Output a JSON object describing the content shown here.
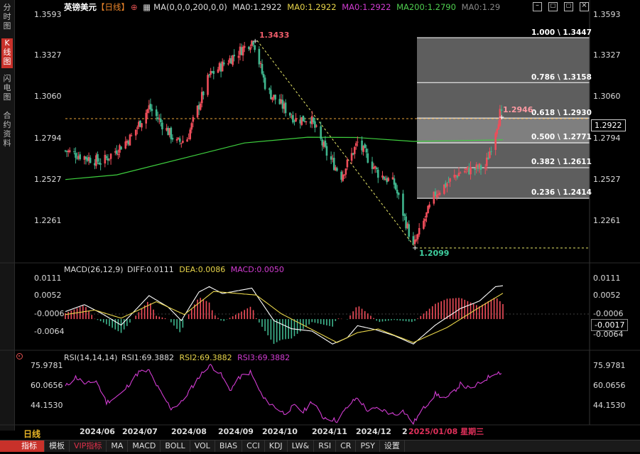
{
  "sidebar": {
    "tabs": [
      {
        "label": "分时图",
        "active": false
      },
      {
        "label": "K线图",
        "active": true
      },
      {
        "label": "闪电图",
        "active": false
      },
      {
        "label": "合约资料",
        "active": false
      }
    ]
  },
  "header": {
    "symbol": "英镑美元",
    "period_tag": "【日线】",
    "settings_icon": "plus-circle-icon",
    "ma_icon": "grid-icon",
    "ma_settings": "MA(0,0,0,200,0,0)",
    "ma_values": [
      {
        "label": "MA0:1.2922",
        "color": "#dddddd"
      },
      {
        "label": "MA0:1.2922",
        "color": "#e8d54a"
      },
      {
        "label": "MA0:1.2922",
        "color": "#d23cd2"
      },
      {
        "label": "MA200:1.2790",
        "color": "#4fcf4f"
      },
      {
        "label": "MA0:1.29",
        "color": "#888888"
      }
    ]
  },
  "window_buttons": [
    "minimize-icon",
    "restore-icon",
    "maximize-icon",
    "close-icon"
  ],
  "price_axis": {
    "left": [
      "1.3593",
      "1.3327",
      "1.3060",
      "1.2794",
      "1.2527",
      "1.2261"
    ],
    "right": [
      "1.3593",
      "1.3327",
      "1.3060",
      "1.2794",
      "1.2527",
      "1.2261"
    ],
    "current_price": "1.2922"
  },
  "annotations": {
    "high_label": "1.3433",
    "low_label": "1.2099",
    "last_high_label": "1.2946"
  },
  "fibonacci": [
    {
      "label": "1.000 \\ 1.3447",
      "level": 1.3447
    },
    {
      "label": "0.786 \\ 1.3158",
      "level": 1.3158
    },
    {
      "label": "0.618 \\ 1.2930",
      "level": 1.293
    },
    {
      "label": "0.500 \\ 1.2771",
      "level": 1.2771
    },
    {
      "label": "0.382 \\ 1.2611",
      "level": 1.2611
    },
    {
      "label": "0.236 \\ 1.2414",
      "level": 1.2414
    }
  ],
  "macd": {
    "settings": "MACD(26,12,9)",
    "diff_label": "DIFF:0.0111",
    "dea_label": "DEA:0.0086",
    "macd_label": "MACD:0.0050",
    "axis_left": [
      "0.0111",
      "0.0052",
      "-0.0006",
      "-0.0064"
    ],
    "axis_right": [
      "0.0111",
      "0.0052",
      "-0.0006",
      "-0.0064"
    ],
    "current": "-0.0017"
  },
  "rsi": {
    "settings": "RSI(14,14,14)",
    "rsi1_label": "RSI1:69.3882",
    "rsi2_label": "RSI2:69.3882",
    "rsi3_label": "RSI3:69.3882",
    "axis_left": [
      "75.9781",
      "60.0656",
      "44.1530"
    ],
    "axis_right": [
      "75.9781",
      "60.0656",
      "44.1530"
    ]
  },
  "date_axis": {
    "period": "日线",
    "labels": [
      "2024/06",
      "2024/07",
      "2024/08",
      "2024/09",
      "2024/10",
      "2024/11",
      "2024/12",
      "2"
    ],
    "cursor_date": "2025/01/08",
    "cursor_weekday": "星期三"
  },
  "bottom_tabs": [
    {
      "label": "指标",
      "active": true
    },
    {
      "label": "模板",
      "active": false
    },
    {
      "label": "VIP指标",
      "active": false,
      "vip": true
    },
    {
      "label": "MA",
      "active": false
    },
    {
      "label": "MACD",
      "active": false
    },
    {
      "label": "BOLL",
      "active": false
    },
    {
      "label": "VOL",
      "active": false
    },
    {
      "label": "BIAS",
      "active": false
    },
    {
      "label": "CCI",
      "active": false
    },
    {
      "label": "KDJ",
      "active": false
    },
    {
      "label": "LW&",
      "active": false
    },
    {
      "label": "RSI",
      "active": false
    },
    {
      "label": "CR",
      "active": false
    },
    {
      "label": "PSY",
      "active": false
    },
    {
      "label": "设置",
      "active": false
    }
  ],
  "colors": {
    "up": "#ef4d5a",
    "down": "#3fb68e",
    "ma200": "#3ecf3e",
    "diff": "#ffffff",
    "dea": "#e8d54a",
    "rsi": "#d23cd2",
    "accent": "#c8312a"
  },
  "chart_data": {
    "type": "candlestick",
    "price_range": [
      1.2095,
      1.3593
    ],
    "anchors": [
      {
        "date": "2024/05/21",
        "price": 1.272
      },
      {
        "date": "2024/06/15",
        "price": 1.2645
      },
      {
        "date": "2024/07/05",
        "price": 1.281
      },
      {
        "date": "2024/07/17",
        "price": 1.3
      },
      {
        "date": "2024/08/05",
        "price": 1.277
      },
      {
        "date": "2024/08/12",
        "price": 1.28
      },
      {
        "date": "2024/08/27",
        "price": 1.32
      },
      {
        "date": "2024/09/26",
        "price": 1.3433
      },
      {
        "date": "2024/10/05",
        "price": 1.311
      },
      {
        "date": "2024/10/25",
        "price": 1.292
      },
      {
        "date": "2024/11/04",
        "price": 1.293
      },
      {
        "date": "2024/11/15",
        "price": 1.27
      },
      {
        "date": "2024/11/25",
        "price": 1.256
      },
      {
        "date": "2024/12/06",
        "price": 1.2772
      },
      {
        "date": "2024/12/20",
        "price": 1.2575
      },
      {
        "date": "2024/12/31",
        "price": 1.2508
      },
      {
        "date": "2025/01/13",
        "price": 1.2099
      },
      {
        "date": "2025/01/28",
        "price": 1.2445
      },
      {
        "date": "2025/02/14",
        "price": 1.2585
      },
      {
        "date": "2025/03/03",
        "price": 1.2615
      },
      {
        "date": "2025/03/13",
        "price": 1.296
      },
      {
        "date": "2025/03/15",
        "price": 1.2922
      }
    ],
    "ma200": [
      {
        "date": "2024/05/21",
        "price": 1.2535
      },
      {
        "date": "2024/06/25",
        "price": 1.2565
      },
      {
        "date": "2024/08/15",
        "price": 1.2685
      },
      {
        "date": "2024/09/20",
        "price": 1.277
      },
      {
        "date": "2024/11/02",
        "price": 1.2807
      },
      {
        "date": "2024/12/05",
        "price": 1.2805
      },
      {
        "date": "2025/01/13",
        "price": 1.278
      },
      {
        "date": "2025/03/15",
        "price": 1.279
      }
    ],
    "macd_range": [
      -0.0092,
      0.0135
    ],
    "macd_diff": [
      {
        "date": "2024/05/21",
        "value": 0.0025
      },
      {
        "date": "2024/06/03",
        "value": 0.0048
      },
      {
        "date": "2024/06/15",
        "value": 0.0018
      },
      {
        "date": "2024/06/28",
        "value": -0.002
      },
      {
        "date": "2024/07/17",
        "value": 0.0078
      },
      {
        "date": "2024/07/30",
        "value": 0.004
      },
      {
        "date": "2024/08/08",
        "value": -0.0005
      },
      {
        "date": "2024/08/20",
        "value": 0.009
      },
      {
        "date": "2024/08/27",
        "value": 0.0108
      },
      {
        "date": "2024/09/05",
        "value": 0.0085
      },
      {
        "date": "2024/09/25",
        "value": 0.0103
      },
      {
        "date": "2024/10/10",
        "value": -0.0005
      },
      {
        "date": "2024/10/22",
        "value": -0.0032
      },
      {
        "date": "2024/11/05",
        "value": -0.004
      },
      {
        "date": "2024/11/19",
        "value": -0.0083
      },
      {
        "date": "2024/11/29",
        "value": -0.0062
      },
      {
        "date": "2024/12/06",
        "value": -0.0022
      },
      {
        "date": "2024/12/18",
        "value": -0.0035
      },
      {
        "date": "2024/12/31",
        "value": -0.0055
      },
      {
        "date": "2025/01/13",
        "value": -0.0083
      },
      {
        "date": "2025/01/28",
        "value": -0.002
      },
      {
        "date": "2025/02/14",
        "value": 0.0035
      },
      {
        "date": "2025/02/27",
        "value": 0.006
      },
      {
        "date": "2025/03/10",
        "value": 0.0108
      },
      {
        "date": "2025/03/15",
        "value": 0.0111
      }
    ],
    "macd_dea": [
      {
        "date": "2024/05/21",
        "value": 0.0015
      },
      {
        "date": "2024/06/10",
        "value": 0.003
      },
      {
        "date": "2024/06/28",
        "value": 0.0003
      },
      {
        "date": "2024/07/22",
        "value": 0.0058
      },
      {
        "date": "2024/08/10",
        "value": 0.0015
      },
      {
        "date": "2024/08/30",
        "value": 0.0092
      },
      {
        "date": "2024/09/28",
        "value": 0.008
      },
      {
        "date": "2024/10/15",
        "value": 0.0018
      },
      {
        "date": "2024/11/05",
        "value": -0.0035
      },
      {
        "date": "2024/11/22",
        "value": -0.0078
      },
      {
        "date": "2024/12/06",
        "value": -0.0045
      },
      {
        "date": "2024/12/20",
        "value": -0.0033
      },
      {
        "date": "2025/01/13",
        "value": -0.0078
      },
      {
        "date": "2025/02/05",
        "value": -0.0028
      },
      {
        "date": "2025/02/24",
        "value": 0.003
      },
      {
        "date": "2025/03/15",
        "value": 0.0086
      }
    ],
    "rsi_range": [
      27,
      84
    ],
    "rsi_series": [
      {
        "date": "2024/05/21",
        "value": 58
      },
      {
        "date": "2024/05/28",
        "value": 66
      },
      {
        "date": "2024/06/04",
        "value": 60
      },
      {
        "date": "2024/06/11",
        "value": 63
      },
      {
        "date": "2024/06/18",
        "value": 45
      },
      {
        "date": "2024/06/28",
        "value": 52
      },
      {
        "date": "2024/07/10",
        "value": 70
      },
      {
        "date": "2024/07/17",
        "value": 71
      },
      {
        "date": "2024/07/24",
        "value": 55
      },
      {
        "date": "2024/08/01",
        "value": 40
      },
      {
        "date": "2024/08/08",
        "value": 45
      },
      {
        "date": "2024/08/20",
        "value": 66
      },
      {
        "date": "2024/08/27",
        "value": 76
      },
      {
        "date": "2024/09/03",
        "value": 70
      },
      {
        "date": "2024/09/10",
        "value": 55
      },
      {
        "date": "2024/09/17",
        "value": 66
      },
      {
        "date": "2024/09/24",
        "value": 70
      },
      {
        "date": "2024/10/03",
        "value": 48
      },
      {
        "date": "2024/10/10",
        "value": 42
      },
      {
        "date": "2024/10/17",
        "value": 36
      },
      {
        "date": "2024/10/24",
        "value": 42
      },
      {
        "date": "2024/10/30",
        "value": 37
      },
      {
        "date": "2024/11/05",
        "value": 46
      },
      {
        "date": "2024/11/12",
        "value": 33
      },
      {
        "date": "2024/11/22",
        "value": 30
      },
      {
        "date": "2024/12/01",
        "value": 44
      },
      {
        "date": "2024/12/06",
        "value": 49
      },
      {
        "date": "2024/12/13",
        "value": 38
      },
      {
        "date": "2024/12/20",
        "value": 40
      },
      {
        "date": "2024/12/31",
        "value": 35
      },
      {
        "date": "2025/01/06",
        "value": 38
      },
      {
        "date": "2025/01/13",
        "value": 28
      },
      {
        "date": "2025/01/20",
        "value": 40
      },
      {
        "date": "2025/01/28",
        "value": 52
      },
      {
        "date": "2025/02/05",
        "value": 48
      },
      {
        "date": "2025/02/14",
        "value": 60
      },
      {
        "date": "2025/02/21",
        "value": 56
      },
      {
        "date": "2025/03/03",
        "value": 64
      },
      {
        "date": "2025/03/10",
        "value": 70
      },
      {
        "date": "2025/03/15",
        "value": 69.39
      }
    ],
    "grid": false
  }
}
